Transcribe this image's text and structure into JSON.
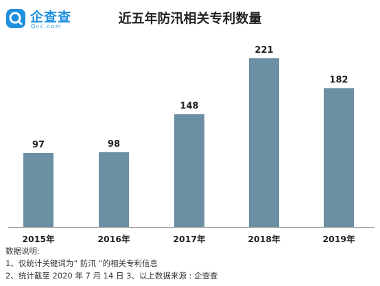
{
  "logo": {
    "name": "企查查",
    "domain": "Qcc.com"
  },
  "title": "近五年防汛相关专利数量",
  "chart_data": {
    "type": "bar",
    "title": "近五年防汛相关专利数量",
    "categories": [
      "2015年",
      "2016年",
      "2017年",
      "2018年",
      "2019年"
    ],
    "values": [
      97,
      98,
      148,
      221,
      182
    ],
    "xlabel": "",
    "ylabel": "",
    "ylim": [
      0,
      230
    ],
    "grid": false,
    "legend": "none",
    "bar_color": "#6b8fa3",
    "axis_color": "#999999"
  },
  "notes": {
    "title": "数据说明:",
    "line1": "1、仅统计关键词为“ 防汛 ”的相关专利信息",
    "line2": "2、统计截至 2020 年 7 月 14 日   3、以上数据来源 : 企查查"
  },
  "colors": {
    "brand": "#1f8fe0",
    "bar": "#6b8fa3"
  }
}
